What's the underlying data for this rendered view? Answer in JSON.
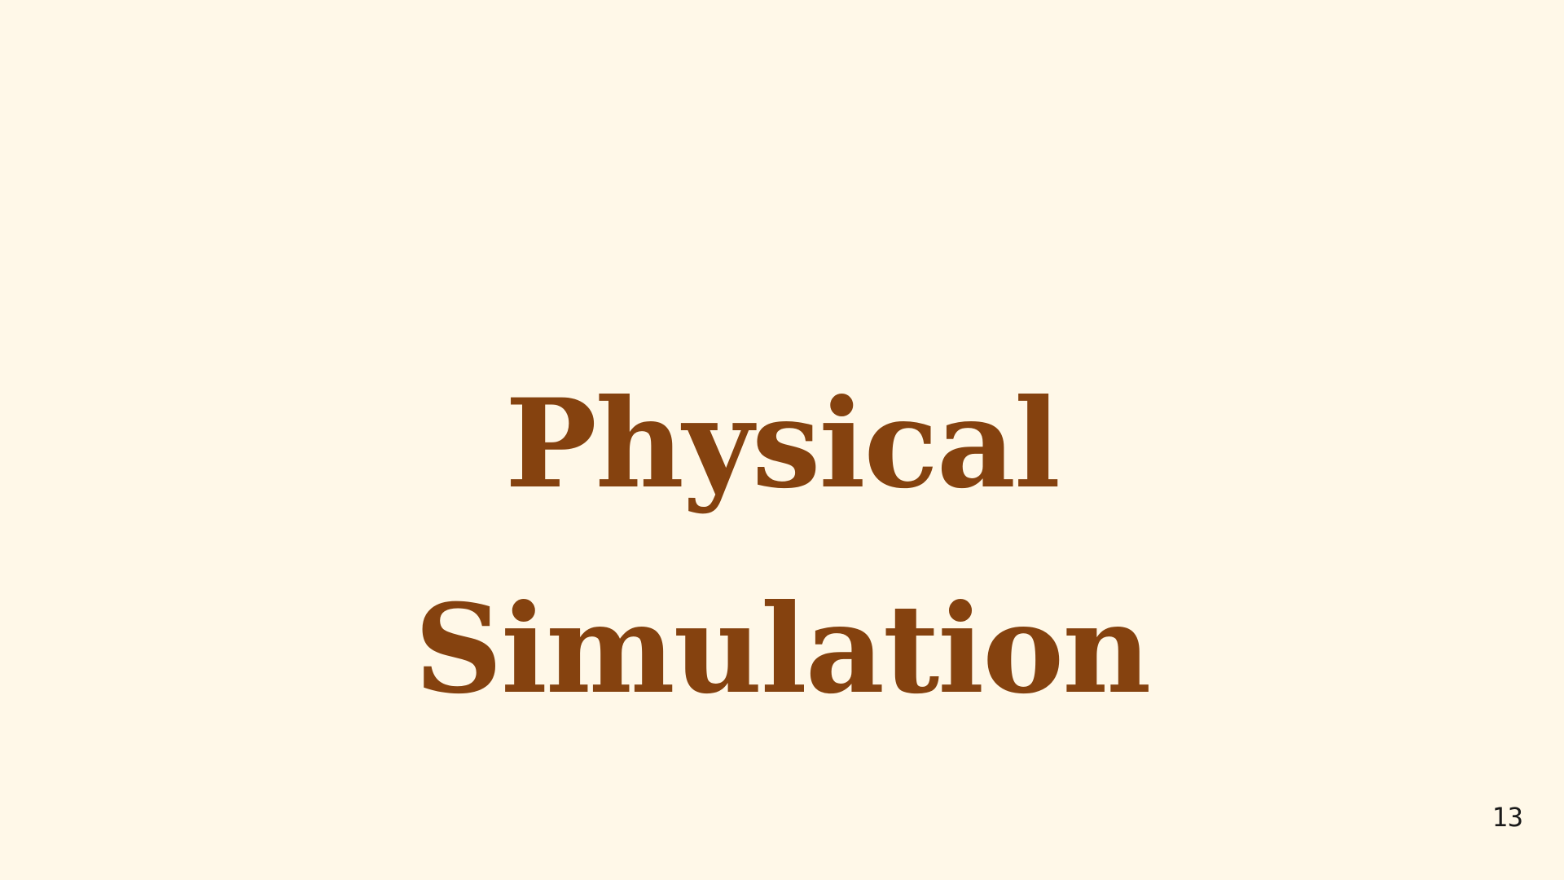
{
  "slide": {
    "title_line_1": "Physical",
    "title_line_2": "Simulation",
    "page_number": "13"
  },
  "colors": {
    "background": "#fff8e8",
    "title": "#85420f",
    "page_number": "#1a1a1a"
  }
}
